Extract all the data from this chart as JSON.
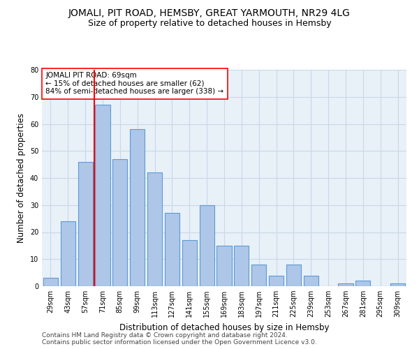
{
  "title": "JOMALI, PIT ROAD, HEMSBY, GREAT YARMOUTH, NR29 4LG",
  "subtitle": "Size of property relative to detached houses in Hemsby",
  "xlabel": "Distribution of detached houses by size in Hemsby",
  "ylabel": "Number of detached properties",
  "categories": [
    "29sqm",
    "43sqm",
    "57sqm",
    "71sqm",
    "85sqm",
    "99sqm",
    "113sqm",
    "127sqm",
    "141sqm",
    "155sqm",
    "169sqm",
    "183sqm",
    "197sqm",
    "211sqm",
    "225sqm",
    "239sqm",
    "253sqm",
    "267sqm",
    "281sqm",
    "295sqm",
    "309sqm"
  ],
  "values": [
    3,
    24,
    46,
    67,
    47,
    58,
    42,
    27,
    17,
    30,
    15,
    15,
    8,
    4,
    8,
    4,
    0,
    1,
    2,
    0,
    1
  ],
  "bar_color": "#aec6e8",
  "bar_edgecolor": "#5b9bd5",
  "redline_index": 2.5,
  "annotation_text": "JOMALI PIT ROAD: 69sqm\n← 15% of detached houses are smaller (62)\n84% of semi-detached houses are larger (338) →",
  "annotation_box_edgecolor": "red",
  "annotation_fontsize": 7.5,
  "grid_color": "#c8d8e8",
  "background_color": "#e8f0f8",
  "ylim": [
    0,
    80
  ],
  "yticks": [
    0,
    10,
    20,
    30,
    40,
    50,
    60,
    70,
    80
  ],
  "footer1": "Contains HM Land Registry data © Crown copyright and database right 2024.",
  "footer2": "Contains public sector information licensed under the Open Government Licence v3.0.",
  "title_fontsize": 10,
  "subtitle_fontsize": 9,
  "xlabel_fontsize": 8.5,
  "ylabel_fontsize": 8.5,
  "tick_fontsize": 7,
  "footer_fontsize": 6.5
}
